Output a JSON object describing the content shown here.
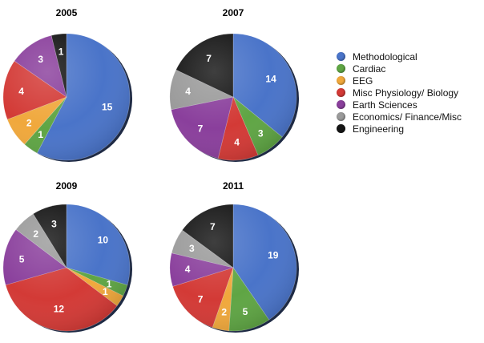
{
  "chart_data": {
    "type": "pie",
    "categories": [
      "Methodological",
      "Cardiac",
      "EEG",
      "Misc Physiology/ Biology",
      "Earth Sciences",
      "Economics/ Finance/Misc",
      "Engineering"
    ],
    "colors": [
      "#4a74c9",
      "#5fa544",
      "#f0a83c",
      "#d33a36",
      "#8a3f9c",
      "#9a9a9a",
      "#151515"
    ],
    "legend_position": "right",
    "charts": [
      {
        "title": "2005",
        "values": [
          15,
          1,
          2,
          4,
          3,
          0,
          1
        ]
      },
      {
        "title": "2007",
        "values": [
          14,
          3,
          0,
          4,
          7,
          4,
          7
        ]
      },
      {
        "title": "2009",
        "values": [
          10,
          1,
          1,
          12,
          5,
          2,
          3
        ]
      },
      {
        "title": "2011",
        "values": [
          19,
          5,
          2,
          7,
          4,
          3,
          7
        ]
      }
    ]
  }
}
